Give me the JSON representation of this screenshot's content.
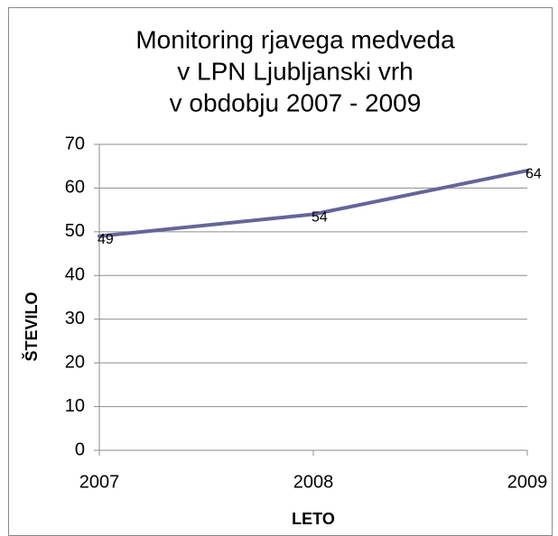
{
  "chart_data": {
    "type": "line",
    "title": [
      "Monitoring rjavega medveda",
      "v LPN Ljubljanski vrh",
      "v obdobju 2007 - 2009"
    ],
    "x_label": "LETO",
    "y_label": "ŠTEVILO",
    "x": [
      2007,
      2008,
      2009
    ],
    "series": [
      {
        "name": "Število",
        "color": "#65659a",
        "values": [
          49,
          54,
          64
        ]
      }
    ],
    "xlim": [
      2007,
      2009
    ],
    "xticks": [
      2007,
      2008,
      2009
    ],
    "ylim": [
      0,
      70
    ],
    "yticks": [
      0,
      10,
      20,
      30,
      40,
      50,
      60,
      70
    ],
    "grid": true
  }
}
